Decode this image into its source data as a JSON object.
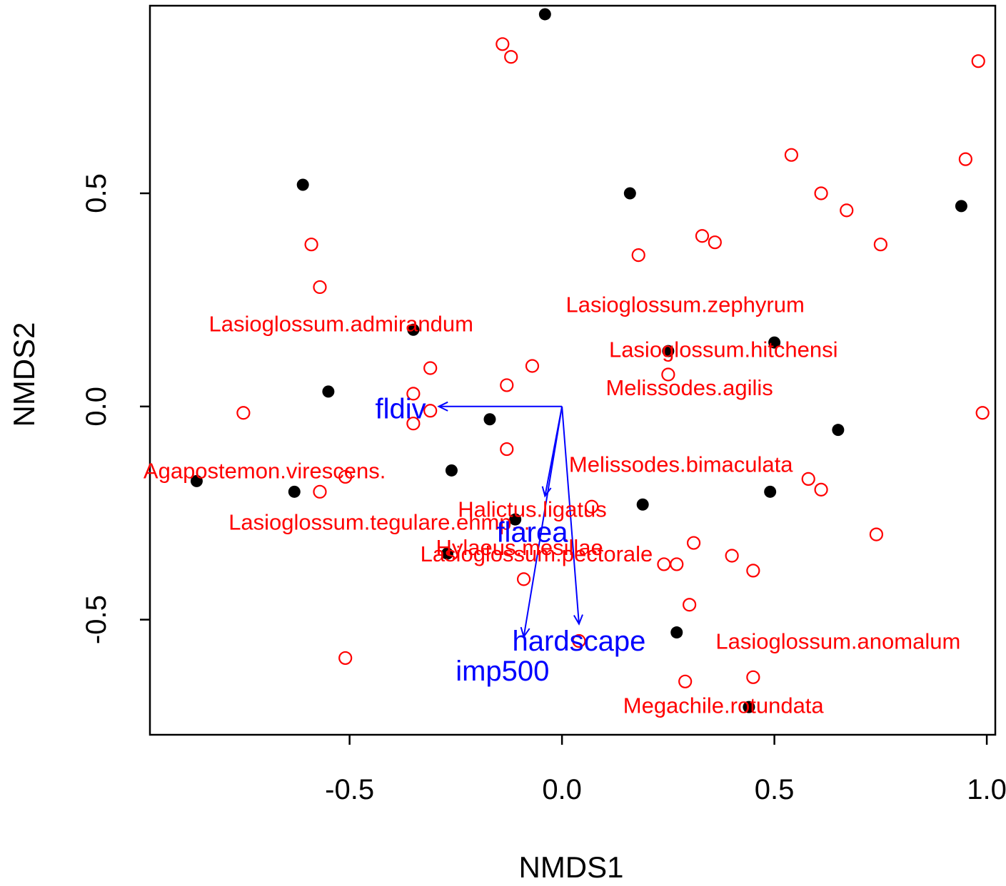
{
  "chart_data": {
    "type": "scatter",
    "title": "",
    "xlabel": "NMDS1",
    "ylabel": "NMDS2",
    "xlim": [
      -0.97,
      1.02
    ],
    "ylim": [
      -0.77,
      0.94
    ],
    "xticks": [
      -0.5,
      0.0,
      0.5,
      1.0
    ],
    "xtick_labels": [
      "-0.5",
      "0.0",
      "0.5",
      "1.0"
    ],
    "yticks": [
      -0.5,
      0.0,
      0.5
    ],
    "ytick_labels": [
      "-0.5",
      "0.0",
      "0.5"
    ],
    "grid": false,
    "legend": "none",
    "colors": {
      "sites": "#000000",
      "species": "#ff0000",
      "vectors": "#0000ff",
      "axes": "#000000"
    },
    "sites": [
      {
        "x": -0.04,
        "y": 0.92
      },
      {
        "x": -0.61,
        "y": 0.52
      },
      {
        "x": 0.16,
        "y": 0.5
      },
      {
        "x": 0.94,
        "y": 0.47
      },
      {
        "x": -0.35,
        "y": 0.18
      },
      {
        "x": 0.25,
        "y": 0.13
      },
      {
        "x": 0.5,
        "y": 0.15
      },
      {
        "x": -0.55,
        "y": 0.035
      },
      {
        "x": -0.17,
        "y": -0.03
      },
      {
        "x": 0.65,
        "y": -0.055
      },
      {
        "x": -0.26,
        "y": -0.15
      },
      {
        "x": -0.86,
        "y": -0.175
      },
      {
        "x": -0.63,
        "y": -0.2
      },
      {
        "x": 0.49,
        "y": -0.2
      },
      {
        "x": 0.19,
        "y": -0.23
      },
      {
        "x": -0.11,
        "y": -0.265
      },
      {
        "x": -0.27,
        "y": -0.345
      },
      {
        "x": 0.27,
        "y": -0.53
      },
      {
        "x": 0.44,
        "y": -0.705
      }
    ],
    "species": [
      {
        "x": -0.14,
        "y": 0.85
      },
      {
        "x": -0.12,
        "y": 0.82
      },
      {
        "x": 0.98,
        "y": 0.81
      },
      {
        "x": 0.54,
        "y": 0.59
      },
      {
        "x": 0.95,
        "y": 0.58
      },
      {
        "x": 0.61,
        "y": 0.5
      },
      {
        "x": 0.67,
        "y": 0.46
      },
      {
        "x": 0.33,
        "y": 0.4
      },
      {
        "x": 0.36,
        "y": 0.385
      },
      {
        "x": 0.75,
        "y": 0.38
      },
      {
        "x": -0.59,
        "y": 0.38
      },
      {
        "x": 0.18,
        "y": 0.355
      },
      {
        "x": -0.57,
        "y": 0.28
      },
      {
        "x": -0.31,
        "y": 0.09
      },
      {
        "x": -0.07,
        "y": 0.095
      },
      {
        "x": 0.25,
        "y": 0.075
      },
      {
        "x": -0.13,
        "y": 0.05
      },
      {
        "x": -0.35,
        "y": 0.03
      },
      {
        "x": -0.75,
        "y": -0.015
      },
      {
        "x": -0.31,
        "y": -0.01
      },
      {
        "x": 0.99,
        "y": -0.015
      },
      {
        "x": -0.35,
        "y": -0.04
      },
      {
        "x": -0.13,
        "y": -0.1
      },
      {
        "x": -0.51,
        "y": -0.165
      },
      {
        "x": 0.58,
        "y": -0.17
      },
      {
        "x": 0.61,
        "y": -0.195
      },
      {
        "x": -0.57,
        "y": -0.2
      },
      {
        "x": 0.07,
        "y": -0.235
      },
      {
        "x": 0.74,
        "y": -0.3
      },
      {
        "x": 0.31,
        "y": -0.32
      },
      {
        "x": 0.4,
        "y": -0.35
      },
      {
        "x": 0.24,
        "y": -0.37
      },
      {
        "x": 0.27,
        "y": -0.37
      },
      {
        "x": 0.45,
        "y": -0.385
      },
      {
        "x": -0.09,
        "y": -0.405
      },
      {
        "x": 0.3,
        "y": -0.465
      },
      {
        "x": 0.04,
        "y": -0.55
      },
      {
        "x": -0.51,
        "y": -0.59
      },
      {
        "x": 0.45,
        "y": -0.635
      },
      {
        "x": 0.29,
        "y": -0.645
      }
    ],
    "species_labels": [
      {
        "text": "Lasioglossum.zephyrum",
        "x": 0.29,
        "y": 0.235
      },
      {
        "text": "Lasioglossum.admirandum",
        "x": -0.52,
        "y": 0.19
      },
      {
        "text": "Lasioglossum.hitchensi",
        "x": 0.38,
        "y": 0.13
      },
      {
        "text": "Melissodes.agilis",
        "x": 0.3,
        "y": 0.04
      },
      {
        "text": "Agapostemon.virescens.",
        "x": -0.7,
        "y": -0.155
      },
      {
        "text": "Melissodes.bimaculata",
        "x": 0.28,
        "y": -0.14
      },
      {
        "text": "Halictus.ligatus",
        "x": -0.07,
        "y": -0.245
      },
      {
        "text": "Lasioglossum.tegulare.ehmp...",
        "x": -0.43,
        "y": -0.275
      },
      {
        "text": "Hylaeus.mesillae",
        "x": -0.1,
        "y": -0.335
      },
      {
        "text": "Lasioglossum.pectorale",
        "x": -0.06,
        "y": -0.35
      },
      {
        "text": "Lasioglossum.anomalum",
        "x": 0.65,
        "y": -0.555
      },
      {
        "text": "Megachile.rotundata",
        "x": 0.38,
        "y": -0.705
      }
    ],
    "vectors": [
      {
        "name": "fldiv",
        "x": -0.29,
        "y": 0.0,
        "label_x": -0.38,
        "label_y": -0.01
      },
      {
        "name": "flarea",
        "x": -0.04,
        "y": -0.21,
        "label_x": -0.07,
        "label_y": -0.3
      },
      {
        "name": "hardscape",
        "x": 0.04,
        "y": -0.51,
        "label_x": 0.04,
        "label_y": -0.555
      },
      {
        "name": "imp500",
        "x": -0.09,
        "y": -0.54,
        "label_x": -0.14,
        "label_y": -0.625
      }
    ]
  }
}
